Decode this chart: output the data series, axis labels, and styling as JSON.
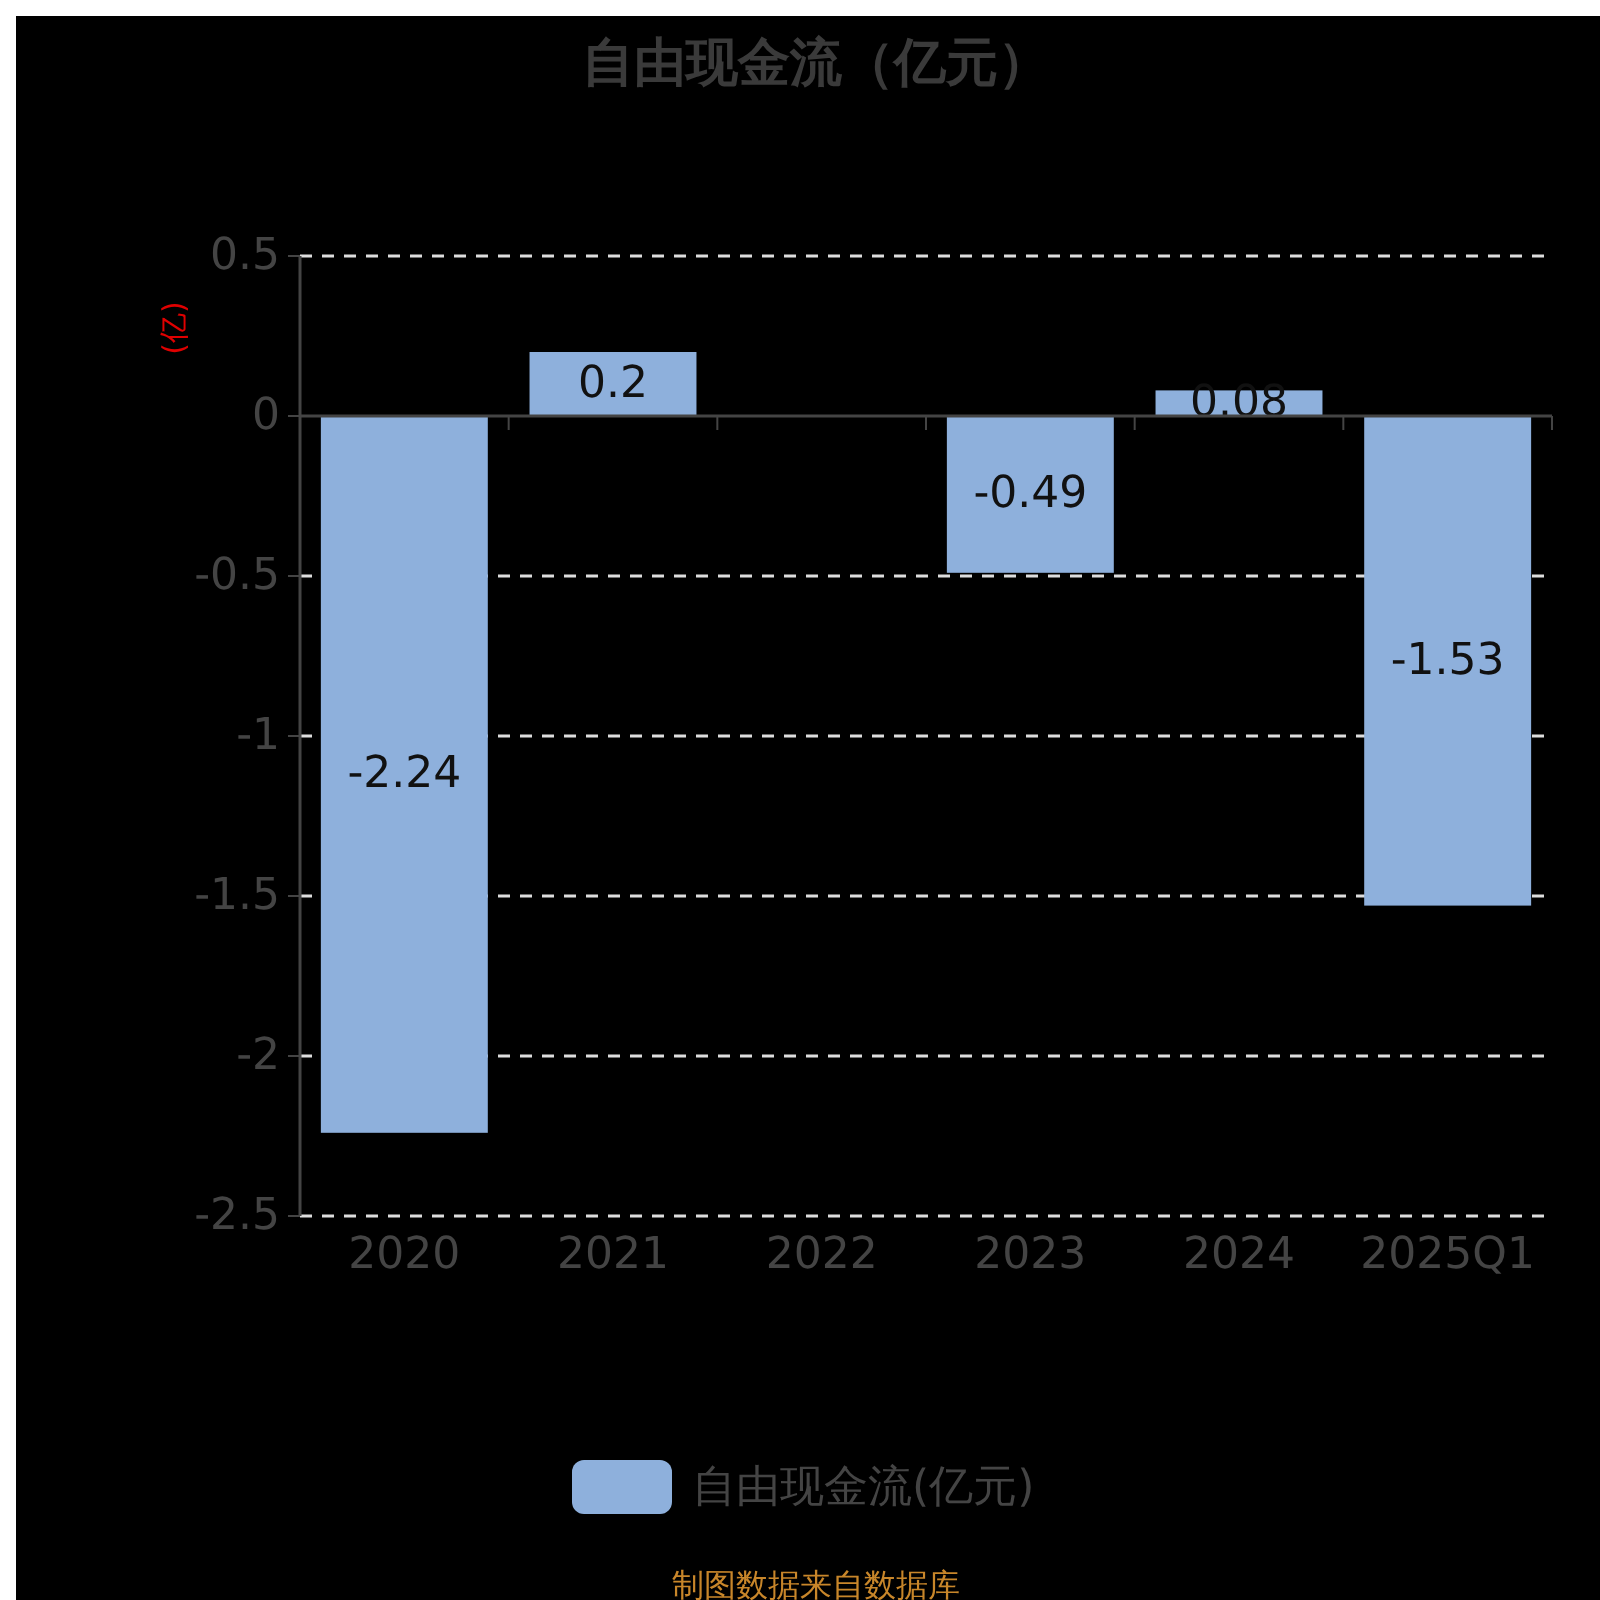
{
  "chart_data": {
    "type": "bar",
    "title": "自由现金流（亿元）",
    "ylabel": "(亿)",
    "categories": [
      "2020",
      "2021",
      "2022",
      "2023",
      "2024",
      "2025Q1"
    ],
    "series": [
      {
        "name": "自由现金流(亿元)",
        "color": "#8eb0dc",
        "values": [
          -2.24,
          0.2,
          null,
          -0.49,
          0.08,
          -1.53
        ]
      }
    ],
    "ylim": [
      -2.5,
      0.5
    ],
    "yticks": [
      0.5,
      0,
      -0.5,
      -1,
      -1.5,
      -2,
      -2.5
    ],
    "grid": "y",
    "legend": "bottom",
    "data_labels": true,
    "annotations": [
      "制图数据来自数据库"
    ]
  }
}
